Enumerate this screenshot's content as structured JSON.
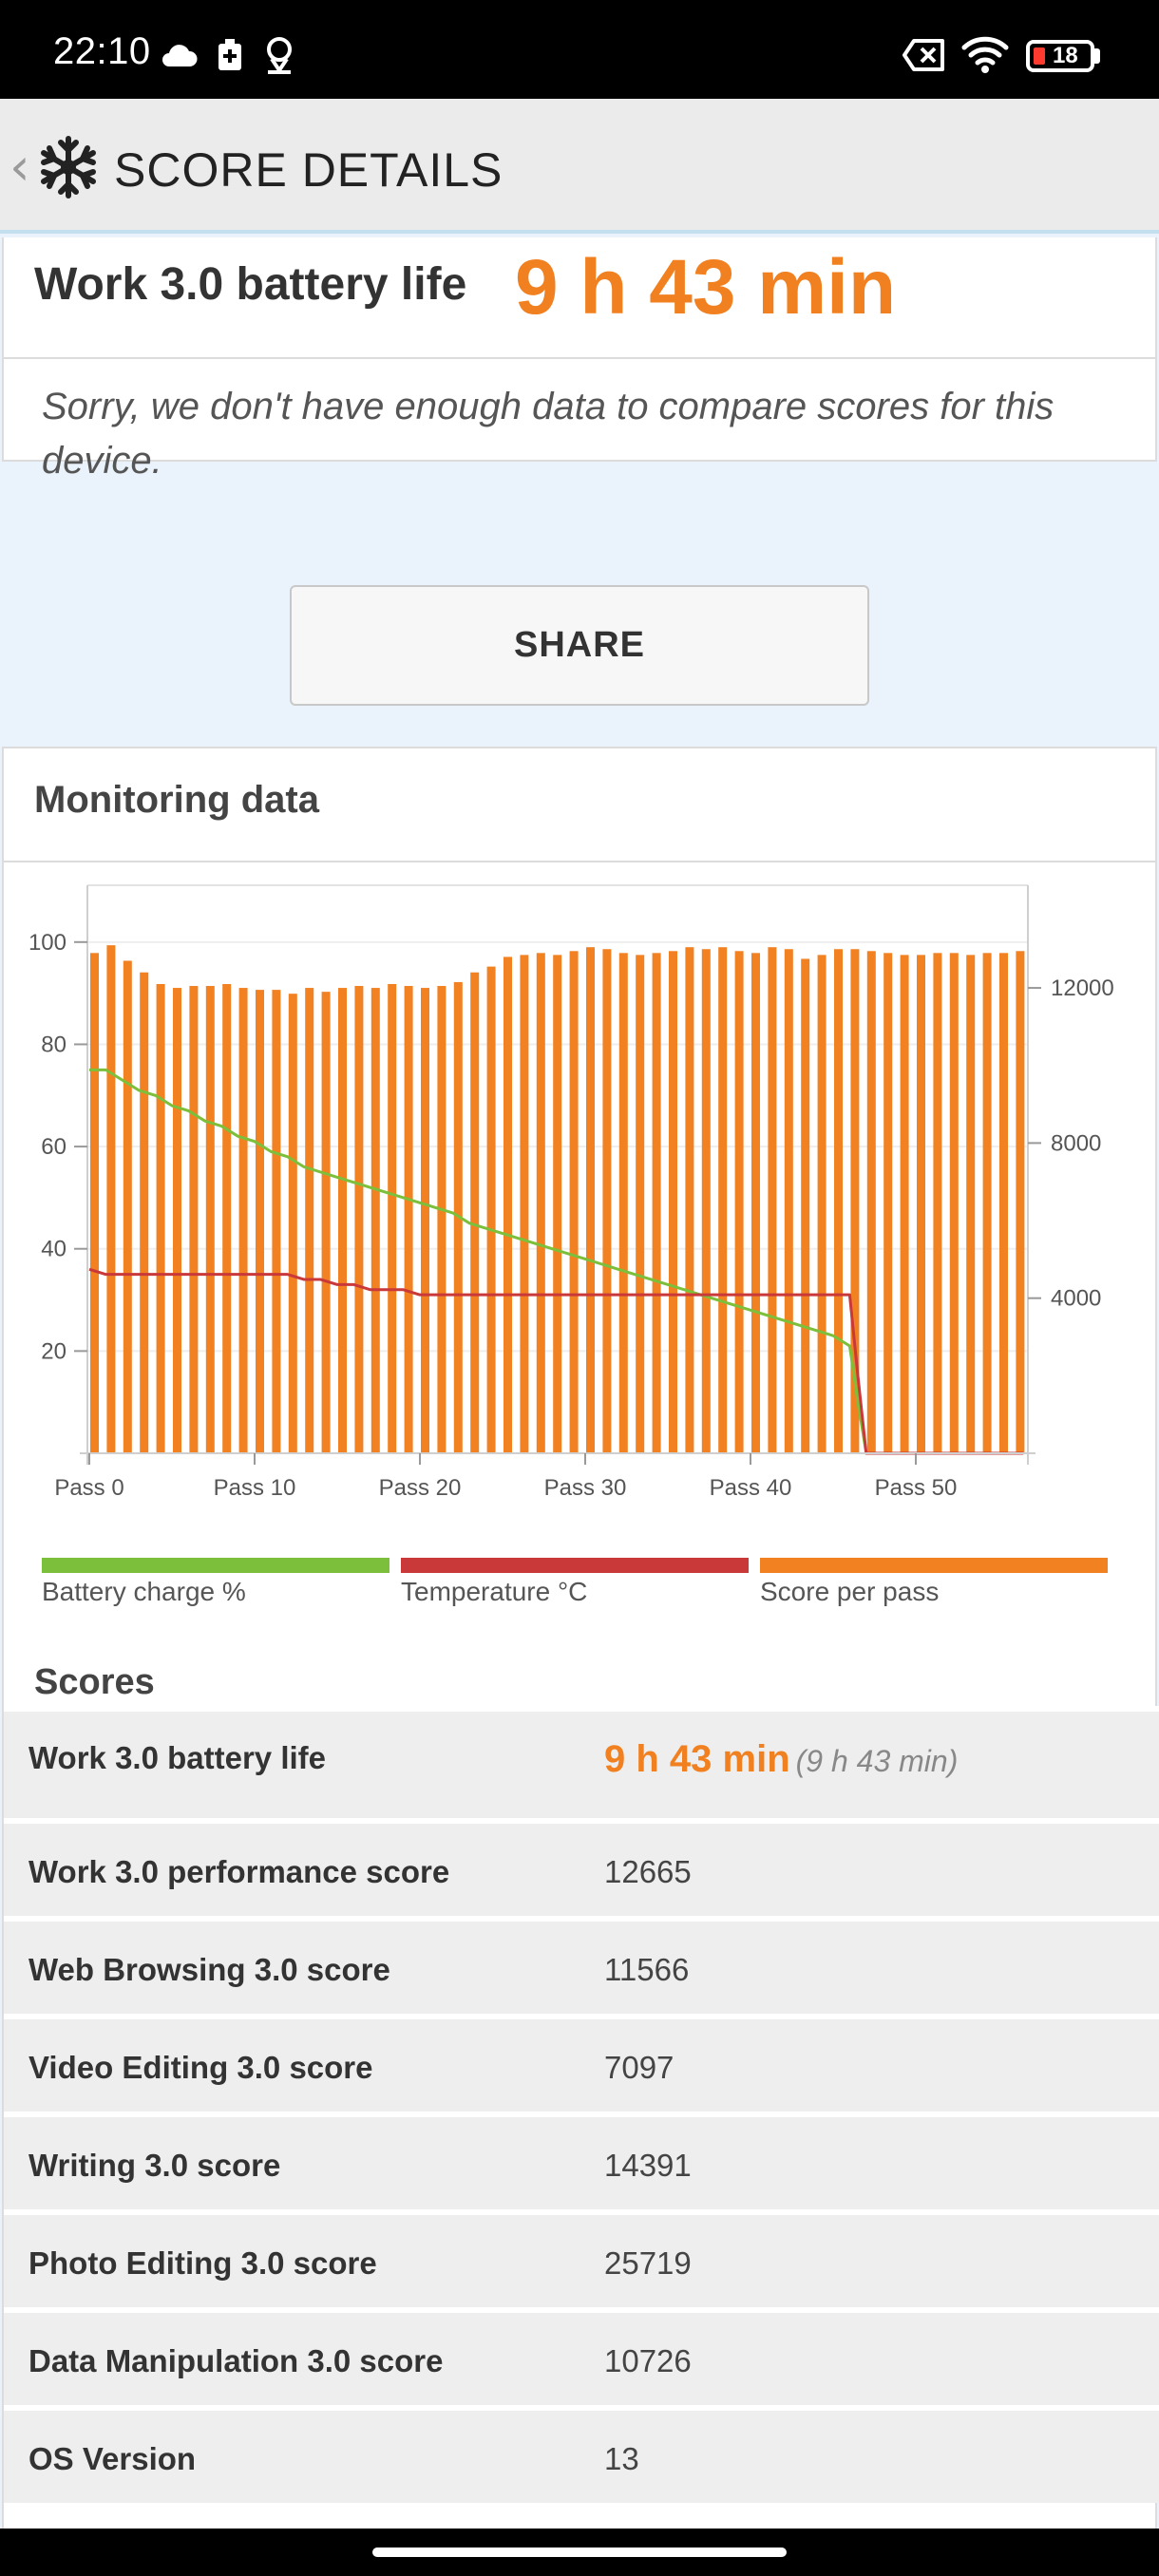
{
  "status": {
    "time": "22:10",
    "battery": "18"
  },
  "header": {
    "title": "SCORE DETAILS"
  },
  "summary": {
    "label": "Work 3.0 battery life",
    "value": "9 h 43 min",
    "notice": "Sorry, we don't have enough data to compare scores for this device."
  },
  "share": {
    "label": "SHARE"
  },
  "monitoring": {
    "title": "Monitoring data"
  },
  "legend": {
    "battery": "Battery charge %",
    "temperature": "Temperature °C",
    "score": "Score per pass"
  },
  "scores": {
    "title": "Scores",
    "rows": [
      {
        "label": "Work 3.0 battery life",
        "value": "9 h 43 min",
        "sub": "(9 h 43 min)"
      },
      {
        "label": "Work 3.0 performance score",
        "value": "12665"
      },
      {
        "label": "Web Browsing 3.0 score",
        "value": "11566"
      },
      {
        "label": "Video Editing 3.0 score",
        "value": "7097"
      },
      {
        "label": "Writing 3.0 score",
        "value": "14391"
      },
      {
        "label": "Photo Editing 3.0 score",
        "value": "25719"
      },
      {
        "label": "Data Manipulation 3.0 score",
        "value": "10726"
      },
      {
        "label": "OS Version",
        "value": "13"
      }
    ]
  },
  "colors": {
    "battery": "#7cbf3a",
    "temperature": "#c9393a",
    "score": "#f28122",
    "accent": "#f08020"
  },
  "chart_data": {
    "type": "bar",
    "x": [
      0,
      1,
      2,
      3,
      4,
      5,
      6,
      7,
      8,
      9,
      10,
      11,
      12,
      13,
      14,
      15,
      16,
      17,
      18,
      19,
      20,
      21,
      22,
      23,
      24,
      25,
      26,
      27,
      28,
      29,
      30,
      31,
      32,
      33,
      34,
      35,
      36,
      37,
      38,
      39,
      40,
      41,
      42,
      43,
      44,
      45,
      46,
      47,
      48,
      49,
      50,
      51,
      52,
      53,
      54,
      55,
      56
    ],
    "x_ticks": [
      "Pass 0",
      "Pass 10",
      "Pass 20",
      "Pass 30",
      "Pass 40",
      "Pass 50"
    ],
    "y_left_ticks": [
      "20",
      "40",
      "60",
      "80",
      "100"
    ],
    "y_left_range": [
      0,
      110
    ],
    "y_right_ticks": [
      "4000",
      "8000",
      "12000"
    ],
    "y_right_range": [
      0,
      14500
    ],
    "series": [
      {
        "name": "Score per pass",
        "axis": "right",
        "values": [
          12900,
          13100,
          12700,
          12400,
          12100,
          12000,
          12050,
          12050,
          12100,
          12000,
          11950,
          11950,
          11850,
          12000,
          11900,
          12000,
          12050,
          12000,
          12100,
          12050,
          12000,
          12050,
          12150,
          12400,
          12550,
          12800,
          12850,
          12900,
          12850,
          12950,
          13050,
          13000,
          12900,
          12850,
          12900,
          12950,
          13050,
          13000,
          13050,
          12950,
          12900,
          13050,
          13000,
          12750,
          12850,
          13000,
          13000,
          12950,
          12900,
          12850,
          12850,
          12900,
          12900,
          12850,
          12900,
          12900,
          12950
        ]
      },
      {
        "name": "Battery charge %",
        "axis": "left",
        "points": [
          [
            0,
            75
          ],
          [
            1,
            75
          ],
          [
            2,
            73
          ],
          [
            3,
            71
          ],
          [
            4,
            70
          ],
          [
            5,
            68
          ],
          [
            6,
            67
          ],
          [
            7,
            65
          ],
          [
            8,
            64
          ],
          [
            9,
            62
          ],
          [
            10,
            61
          ],
          [
            11,
            59
          ],
          [
            12,
            58
          ],
          [
            13,
            56
          ],
          [
            14,
            55
          ],
          [
            15,
            54
          ],
          [
            16,
            53
          ],
          [
            17,
            52
          ],
          [
            18,
            51
          ],
          [
            19,
            50
          ],
          [
            20,
            49
          ],
          [
            21,
            48
          ],
          [
            22,
            47
          ],
          [
            23,
            45
          ],
          [
            24,
            44
          ],
          [
            25,
            43
          ],
          [
            26,
            42
          ],
          [
            27,
            41
          ],
          [
            28,
            40
          ],
          [
            29,
            39
          ],
          [
            30,
            38
          ],
          [
            31,
            37
          ],
          [
            32,
            36
          ],
          [
            33,
            35
          ],
          [
            34,
            34
          ],
          [
            35,
            33
          ],
          [
            36,
            32
          ],
          [
            37,
            31
          ],
          [
            38,
            30
          ],
          [
            39,
            29
          ],
          [
            40,
            28
          ],
          [
            41,
            27
          ],
          [
            42,
            26
          ],
          [
            43,
            25
          ],
          [
            44,
            24
          ],
          [
            45,
            23
          ],
          [
            46,
            21
          ],
          [
            46.5,
            10
          ],
          [
            47,
            0
          ],
          [
            56.5,
            0
          ]
        ]
      },
      {
        "name": "Temperature °C",
        "axis": "left",
        "points": [
          [
            0,
            36
          ],
          [
            1,
            35
          ],
          [
            12,
            35
          ],
          [
            13,
            34
          ],
          [
            14,
            34
          ],
          [
            15,
            33
          ],
          [
            16,
            33
          ],
          [
            17,
            32
          ],
          [
            19,
            32
          ],
          [
            20,
            31
          ],
          [
            46,
            31
          ],
          [
            46.5,
            15
          ],
          [
            47,
            0
          ],
          [
            56.5,
            0
          ]
        ]
      }
    ]
  }
}
